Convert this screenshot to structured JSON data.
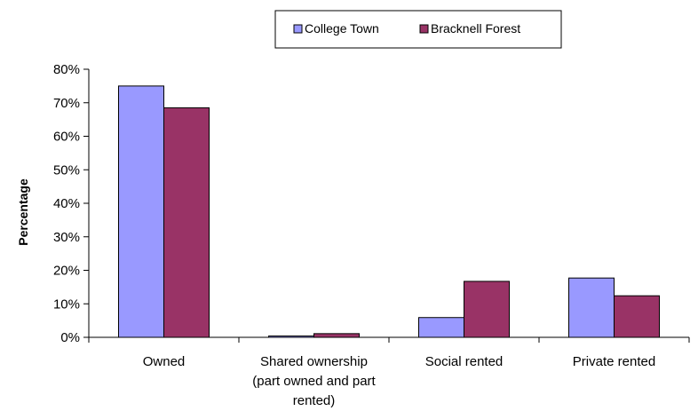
{
  "chart_data": {
    "type": "bar",
    "categories": [
      [
        "Owned"
      ],
      [
        "Shared ownership",
        "(part owned and part",
        "rented)"
      ],
      [
        "Social rented"
      ],
      [
        "Private rented"
      ]
    ],
    "series": [
      {
        "name": "College Town",
        "values": [
          0.75,
          0.004,
          0.059,
          0.177
        ],
        "color": "#9999FF"
      },
      {
        "name": "Bracknell Forest",
        "values": [
          0.685,
          0.011,
          0.167,
          0.124
        ],
        "color": "#993366"
      }
    ],
    "ylabel": "Percentage",
    "ylim": [
      0,
      0.8
    ],
    "yticks": [
      0,
      0.1,
      0.2,
      0.3,
      0.4,
      0.5,
      0.6,
      0.7,
      0.8
    ],
    "ytick_labels": [
      "0%",
      "10%",
      "20%",
      "30%",
      "40%",
      "50%",
      "60%",
      "70%",
      "80%"
    ],
    "grid": false,
    "legend_position": "top"
  }
}
